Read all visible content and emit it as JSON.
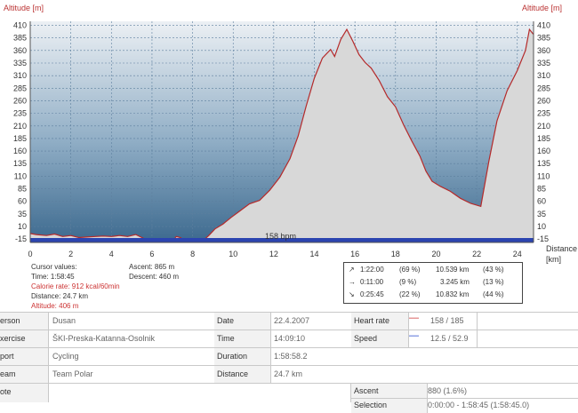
{
  "chart_data": {
    "type": "area",
    "ylabel_left": "Altitude [m]",
    "ylabel_right": "Altitude [m]",
    "xlabel": "Distance [km]",
    "xlabel_line1": "Distance",
    "xlabel_line2": "[km]",
    "ylim": [
      -20,
      418
    ],
    "xlim": [
      0,
      24.8
    ],
    "y_ticks": [
      -15,
      10,
      35,
      60,
      85,
      110,
      135,
      160,
      185,
      210,
      235,
      260,
      285,
      310,
      335,
      360,
      385,
      410
    ],
    "x_ticks": [
      0,
      2,
      4,
      6,
      8,
      10,
      12,
      14,
      16,
      18,
      20,
      22,
      24
    ],
    "grid": true,
    "heart_rate_label": "158 bpm",
    "series": [
      {
        "values_x": [
          0,
          0.3,
          0.8,
          1.2,
          1.6,
          2.0,
          2.4,
          2.8,
          3.2,
          3.6,
          4.0,
          4.4,
          4.8,
          5.2,
          5.6,
          6.0,
          6.4,
          6.8,
          7.0,
          7.2,
          7.4,
          7.6,
          7.8,
          8.0,
          8.3,
          8.6,
          8.8,
          9.1,
          9.5,
          9.9,
          10.3,
          10.8,
          11.3,
          11.8,
          12.3,
          12.8,
          13.2,
          13.6,
          14.0,
          14.4,
          14.8,
          15.0,
          15.3,
          15.6,
          15.9,
          16.2,
          16.5,
          16.8,
          17.2,
          17.6,
          18.0,
          18.4,
          18.8,
          19.2,
          19.5,
          19.8,
          20.2,
          20.7,
          21.2,
          21.7,
          22.2,
          22.6,
          23.0,
          23.5,
          24.0,
          24.4,
          24.6,
          24.8
        ],
        "values_y": [
          -4,
          -6,
          -8,
          -5,
          -10,
          -8,
          -12,
          -11,
          -10,
          -9,
          -10,
          -8,
          -10,
          -6,
          -14,
          -16,
          -18,
          -21,
          -20,
          -10,
          -12,
          -18,
          -20,
          -21,
          -20,
          -15,
          -8,
          5,
          15,
          28,
          40,
          55,
          62,
          82,
          108,
          145,
          190,
          250,
          305,
          345,
          362,
          348,
          382,
          402,
          378,
          352,
          336,
          325,
          300,
          268,
          248,
          212,
          180,
          150,
          120,
          100,
          90,
          80,
          66,
          56,
          50,
          140,
          220,
          280,
          320,
          360,
          402,
          392
        ]
      }
    ]
  },
  "cursor": {
    "title": "Cursor values:",
    "time": "Time: 1:58:45",
    "calorie": "Calorie rate: 912 kcal/60min",
    "distance": "Distance: 24.7 km",
    "altitude": "Altitude: 406 m",
    "ascent": "Ascent: 865 m",
    "descent": "Descent: 460 m"
  },
  "stats": [
    {
      "arrow": "↗",
      "time": "1:22:00",
      "pct": "(69 %)",
      "dist": "10.539 km",
      "dpct": "(43 %)"
    },
    {
      "arrow": "→",
      "time": "0:11:00",
      "pct": "(9 %)",
      "dist": "3.245 km",
      "dpct": "(13 %)"
    },
    {
      "arrow": "↘",
      "time": "0:25:45",
      "pct": "(22 %)",
      "dist": "10.832 km",
      "dpct": "(44 %)"
    }
  ],
  "info": {
    "person_label": "erson",
    "person_value": "Dusan",
    "exercise_label": "xercise",
    "exercise_value": "ŠKI-Preska-Katanna-Osolnik",
    "sport_label": "port",
    "sport_value": "Cycling",
    "team_label": "eam",
    "team_value": "Team Polar",
    "note_label": "ote",
    "date_label": "Date",
    "date_value": "22.4.2007",
    "time_label": "Time",
    "time_value": "14:09:10",
    "duration_label": "Duration",
    "duration_value": "1:58:58.2",
    "distance_label": "Distance",
    "distance_value": "24.7 km",
    "hr_label": "Heart rate",
    "hr_value": "158 / 185",
    "hr_color": "#cc3333",
    "speed_label": "Speed",
    "speed_value": "12.5 / 52.9",
    "speed_color": "#2244cc",
    "ascent_label": "Ascent",
    "ascent_value": "880 (1.6%)",
    "selection_label": "Selection",
    "selection_value": "0:00:00 - 1:58:45 (1:58:45.0)"
  }
}
